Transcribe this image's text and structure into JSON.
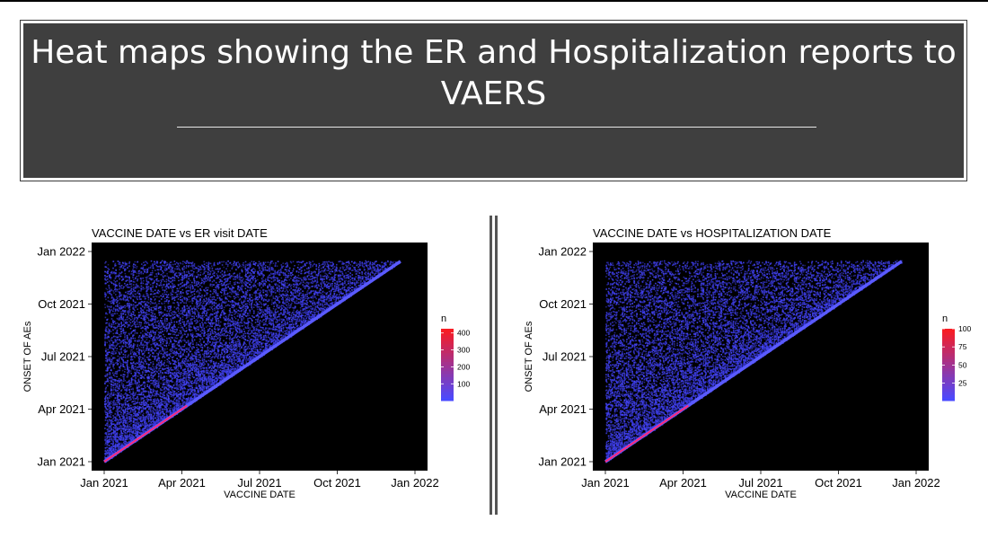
{
  "slide": {
    "title": "Heat maps showing the ER and Hospitalization reports to VAERS"
  },
  "chart_data": [
    {
      "type": "heatmap",
      "title": "VACCINE DATE vs ER visit DATE",
      "xlabel": "VACCINE DATE",
      "ylabel": "ONSET OF AEs",
      "xticks": [
        "Jan 2021",
        "Apr 2021",
        "Jul 2021",
        "Oct 2021",
        "Jan 2022"
      ],
      "yticks": [
        "Jan 2021",
        "Apr 2021",
        "Jul 2021",
        "Oct 2021",
        "Jan 2022"
      ],
      "xlim": [
        "2021-01-01",
        "2022-01-01"
      ],
      "ylim": [
        "2021-01-01",
        "2022-01-01"
      ],
      "data_range": [
        "2021-01-01",
        "2021-12-15"
      ],
      "legend": {
        "title": "n",
        "ticks": [
          100,
          200,
          300,
          400
        ],
        "min": 1,
        "max": 425,
        "low_color": "#4a4aff",
        "high_color": "#ff1a1a",
        "position": "right"
      },
      "background": "#000000",
      "grid": false,
      "description_kind": "lower-triangle density: onset date is on or after vaccine date; highest counts along the diagonal"
    },
    {
      "type": "heatmap",
      "title": "VACCINE DATE vs HOSPITALIZATION DATE",
      "xlabel": "VACCINE DATE",
      "ylabel": "ONSET OF AEs",
      "xticks": [
        "Jan 2021",
        "Apr 2021",
        "Jul 2021",
        "Oct 2021",
        "Jan 2022"
      ],
      "yticks": [
        "Jan 2021",
        "Apr 2021",
        "Jul 2021",
        "Oct 2021",
        "Jan 2022"
      ],
      "xlim": [
        "2021-01-01",
        "2022-01-01"
      ],
      "ylim": [
        "2021-01-01",
        "2022-01-01"
      ],
      "data_range": [
        "2021-01-01",
        "2021-12-15"
      ],
      "legend": {
        "title": "n",
        "ticks": [
          25,
          50,
          75,
          100
        ],
        "min": 1,
        "max": 100,
        "low_color": "#4a4aff",
        "high_color": "#ff1a1a",
        "position": "right"
      },
      "background": "#000000",
      "grid": false,
      "description_kind": "lower-triangle density: onset date is on or after vaccine date; highest counts along the diagonal"
    }
  ]
}
